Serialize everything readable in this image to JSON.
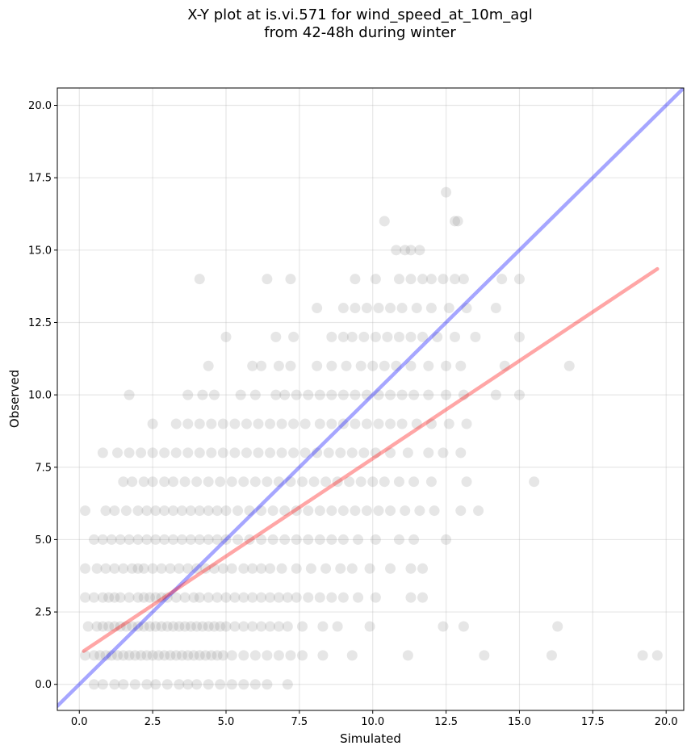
{
  "chart_data": {
    "type": "scatter",
    "title": "X-Y plot at is.vi.571 for wind_speed_at_10m_agl\nfrom 42-48h during winter",
    "xlabel": "Simulated",
    "ylabel": "Observed",
    "xlim": [
      -0.75,
      20.6
    ],
    "ylim": [
      -0.9,
      20.6
    ],
    "xticks": [
      0.0,
      2.5,
      5.0,
      7.5,
      10.0,
      12.5,
      15.0,
      17.5,
      20.0
    ],
    "xtick_labels": [
      "0.0",
      "2.5",
      "5.0",
      "7.5",
      "10.0",
      "12.5",
      "15.0",
      "17.5",
      "20.0"
    ],
    "yticks": [
      0.0,
      2.5,
      5.0,
      7.5,
      10.0,
      12.5,
      15.0,
      17.5,
      20.0
    ],
    "ytick_labels": [
      "0.0",
      "2.5",
      "5.0",
      "7.5",
      "10.0",
      "12.5",
      "15.0",
      "17.5",
      "20.0"
    ],
    "grid": true,
    "point_color": "#808080",
    "point_opacity": 0.2,
    "reference_lines": [
      {
        "kind": "identity",
        "x": [
          -0.75,
          20.6
        ],
        "y": [
          -0.75,
          20.6
        ],
        "color": "#0000ff",
        "opacity": 0.35
      },
      {
        "kind": "regression",
        "x": [
          0.15,
          19.7
        ],
        "y": [
          1.15,
          14.35
        ],
        "color": "#ff0000",
        "opacity": 0.35
      }
    ],
    "points": [
      [
        0.5,
        0
      ],
      [
        0.8,
        0
      ],
      [
        1.2,
        0
      ],
      [
        1.5,
        0
      ],
      [
        1.9,
        0
      ],
      [
        2.3,
        0
      ],
      [
        2.6,
        0
      ],
      [
        3.0,
        0
      ],
      [
        3.4,
        0
      ],
      [
        3.7,
        0
      ],
      [
        4.0,
        0
      ],
      [
        4.4,
        0
      ],
      [
        4.8,
        0
      ],
      [
        5.2,
        0
      ],
      [
        5.6,
        0
      ],
      [
        6.0,
        0
      ],
      [
        6.4,
        0
      ],
      [
        7.1,
        0
      ],
      [
        0.2,
        1
      ],
      [
        0.5,
        1
      ],
      [
        0.7,
        1
      ],
      [
        0.9,
        1
      ],
      [
        1.1,
        1
      ],
      [
        1.3,
        1
      ],
      [
        1.5,
        1
      ],
      [
        1.7,
        1
      ],
      [
        1.9,
        1
      ],
      [
        2.1,
        1
      ],
      [
        2.3,
        1
      ],
      [
        2.5,
        1
      ],
      [
        2.7,
        1
      ],
      [
        2.9,
        1
      ],
      [
        3.1,
        1
      ],
      [
        3.3,
        1
      ],
      [
        3.5,
        1
      ],
      [
        3.7,
        1
      ],
      [
        3.9,
        1
      ],
      [
        4.1,
        1
      ],
      [
        4.3,
        1
      ],
      [
        4.5,
        1
      ],
      [
        4.7,
        1
      ],
      [
        4.9,
        1
      ],
      [
        5.2,
        1
      ],
      [
        5.6,
        1
      ],
      [
        6.0,
        1
      ],
      [
        6.4,
        1
      ],
      [
        6.8,
        1
      ],
      [
        7.2,
        1
      ],
      [
        7.6,
        1
      ],
      [
        8.3,
        1
      ],
      [
        9.3,
        1
      ],
      [
        11.2,
        1
      ],
      [
        13.8,
        1
      ],
      [
        16.1,
        1
      ],
      [
        19.2,
        1
      ],
      [
        19.7,
        1
      ],
      [
        0.3,
        2
      ],
      [
        0.6,
        2
      ],
      [
        0.8,
        2
      ],
      [
        1.0,
        2
      ],
      [
        1.2,
        2
      ],
      [
        1.4,
        2
      ],
      [
        1.6,
        2
      ],
      [
        1.8,
        2
      ],
      [
        2.0,
        2
      ],
      [
        2.2,
        2
      ],
      [
        2.4,
        2
      ],
      [
        2.6,
        2
      ],
      [
        2.8,
        2
      ],
      [
        3.0,
        2
      ],
      [
        3.2,
        2
      ],
      [
        3.4,
        2
      ],
      [
        3.6,
        2
      ],
      [
        3.8,
        2
      ],
      [
        4.0,
        2
      ],
      [
        4.2,
        2
      ],
      [
        4.4,
        2
      ],
      [
        4.6,
        2
      ],
      [
        4.8,
        2
      ],
      [
        5.0,
        2
      ],
      [
        5.3,
        2
      ],
      [
        5.6,
        2
      ],
      [
        5.9,
        2
      ],
      [
        6.2,
        2
      ],
      [
        6.5,
        2
      ],
      [
        6.8,
        2
      ],
      [
        7.1,
        2
      ],
      [
        7.6,
        2
      ],
      [
        8.3,
        2
      ],
      [
        8.8,
        2
      ],
      [
        9.9,
        2
      ],
      [
        12.4,
        2
      ],
      [
        13.1,
        2
      ],
      [
        16.3,
        2
      ],
      [
        0.2,
        3
      ],
      [
        0.5,
        3
      ],
      [
        0.8,
        3
      ],
      [
        1.0,
        3
      ],
      [
        1.2,
        3
      ],
      [
        1.4,
        3
      ],
      [
        1.7,
        3
      ],
      [
        2.0,
        3
      ],
      [
        2.2,
        3
      ],
      [
        2.4,
        3
      ],
      [
        2.6,
        3
      ],
      [
        2.8,
        3
      ],
      [
        3.0,
        3
      ],
      [
        3.3,
        3
      ],
      [
        3.6,
        3
      ],
      [
        3.9,
        3
      ],
      [
        4.1,
        3
      ],
      [
        4.4,
        3
      ],
      [
        4.7,
        3
      ],
      [
        5.0,
        3
      ],
      [
        5.3,
        3
      ],
      [
        5.6,
        3
      ],
      [
        5.9,
        3
      ],
      [
        6.2,
        3
      ],
      [
        6.5,
        3
      ],
      [
        6.8,
        3
      ],
      [
        7.1,
        3
      ],
      [
        7.4,
        3
      ],
      [
        7.8,
        3
      ],
      [
        8.2,
        3
      ],
      [
        8.6,
        3
      ],
      [
        9.0,
        3
      ],
      [
        9.5,
        3
      ],
      [
        10.1,
        3
      ],
      [
        11.3,
        3
      ],
      [
        11.7,
        3
      ],
      [
        0.2,
        4
      ],
      [
        0.6,
        4
      ],
      [
        0.9,
        4
      ],
      [
        1.2,
        4
      ],
      [
        1.5,
        4
      ],
      [
        1.8,
        4
      ],
      [
        2.0,
        4
      ],
      [
        2.2,
        4
      ],
      [
        2.5,
        4
      ],
      [
        2.8,
        4
      ],
      [
        3.1,
        4
      ],
      [
        3.4,
        4
      ],
      [
        3.7,
        4
      ],
      [
        4.0,
        4
      ],
      [
        4.3,
        4
      ],
      [
        4.6,
        4
      ],
      [
        4.9,
        4
      ],
      [
        5.2,
        4
      ],
      [
        5.6,
        4
      ],
      [
        5.9,
        4
      ],
      [
        6.2,
        4
      ],
      [
        6.5,
        4
      ],
      [
        6.9,
        4
      ],
      [
        7.4,
        4
      ],
      [
        7.9,
        4
      ],
      [
        8.4,
        4
      ],
      [
        8.9,
        4
      ],
      [
        9.3,
        4
      ],
      [
        9.9,
        4
      ],
      [
        10.6,
        4
      ],
      [
        11.3,
        4
      ],
      [
        11.7,
        4
      ],
      [
        0.5,
        5
      ],
      [
        0.8,
        5
      ],
      [
        1.1,
        5
      ],
      [
        1.4,
        5
      ],
      [
        1.7,
        5
      ],
      [
        2.0,
        5
      ],
      [
        2.3,
        5
      ],
      [
        2.6,
        5
      ],
      [
        2.9,
        5
      ],
      [
        3.2,
        5
      ],
      [
        3.5,
        5
      ],
      [
        3.8,
        5
      ],
      [
        4.1,
        5
      ],
      [
        4.4,
        5
      ],
      [
        4.7,
        5
      ],
      [
        5.0,
        5
      ],
      [
        5.4,
        5
      ],
      [
        5.8,
        5
      ],
      [
        6.2,
        5
      ],
      [
        6.6,
        5
      ],
      [
        7.0,
        5
      ],
      [
        7.4,
        5
      ],
      [
        7.8,
        5
      ],
      [
        8.2,
        5
      ],
      [
        8.6,
        5
      ],
      [
        9.0,
        5
      ],
      [
        9.5,
        5
      ],
      [
        10.1,
        5
      ],
      [
        10.9,
        5
      ],
      [
        11.4,
        5
      ],
      [
        12.5,
        5
      ],
      [
        0.2,
        6
      ],
      [
        0.9,
        6
      ],
      [
        1.2,
        6
      ],
      [
        1.6,
        6
      ],
      [
        2.0,
        6
      ],
      [
        2.3,
        6
      ],
      [
        2.6,
        6
      ],
      [
        2.9,
        6
      ],
      [
        3.2,
        6
      ],
      [
        3.5,
        6
      ],
      [
        3.8,
        6
      ],
      [
        4.1,
        6
      ],
      [
        4.4,
        6
      ],
      [
        4.7,
        6
      ],
      [
        5.0,
        6
      ],
      [
        5.4,
        6
      ],
      [
        5.8,
        6
      ],
      [
        6.2,
        6
      ],
      [
        6.6,
        6
      ],
      [
        7.0,
        6
      ],
      [
        7.4,
        6
      ],
      [
        7.8,
        6
      ],
      [
        8.2,
        6
      ],
      [
        8.6,
        6
      ],
      [
        9.0,
        6
      ],
      [
        9.4,
        6
      ],
      [
        9.8,
        6
      ],
      [
        10.2,
        6
      ],
      [
        10.6,
        6
      ],
      [
        11.1,
        6
      ],
      [
        11.6,
        6
      ],
      [
        12.1,
        6
      ],
      [
        13.0,
        6
      ],
      [
        13.6,
        6
      ],
      [
        1.5,
        7
      ],
      [
        1.8,
        7
      ],
      [
        2.2,
        7
      ],
      [
        2.5,
        7
      ],
      [
        2.9,
        7
      ],
      [
        3.2,
        7
      ],
      [
        3.6,
        7
      ],
      [
        4.0,
        7
      ],
      [
        4.4,
        7
      ],
      [
        4.8,
        7
      ],
      [
        5.2,
        7
      ],
      [
        5.6,
        7
      ],
      [
        6.0,
        7
      ],
      [
        6.4,
        7
      ],
      [
        6.8,
        7
      ],
      [
        7.2,
        7
      ],
      [
        7.6,
        7
      ],
      [
        8.0,
        7
      ],
      [
        8.4,
        7
      ],
      [
        8.8,
        7
      ],
      [
        9.2,
        7
      ],
      [
        9.6,
        7
      ],
      [
        10.0,
        7
      ],
      [
        10.4,
        7
      ],
      [
        10.9,
        7
      ],
      [
        11.4,
        7
      ],
      [
        12.0,
        7
      ],
      [
        13.2,
        7
      ],
      [
        15.5,
        7
      ],
      [
        0.8,
        8
      ],
      [
        1.3,
        8
      ],
      [
        1.7,
        8
      ],
      [
        2.1,
        8
      ],
      [
        2.5,
        8
      ],
      [
        2.9,
        8
      ],
      [
        3.3,
        8
      ],
      [
        3.7,
        8
      ],
      [
        4.1,
        8
      ],
      [
        4.5,
        8
      ],
      [
        4.9,
        8
      ],
      [
        5.3,
        8
      ],
      [
        5.7,
        8
      ],
      [
        6.1,
        8
      ],
      [
        6.5,
        8
      ],
      [
        6.9,
        8
      ],
      [
        7.3,
        8
      ],
      [
        7.7,
        8
      ],
      [
        8.1,
        8
      ],
      [
        8.5,
        8
      ],
      [
        8.9,
        8
      ],
      [
        9.3,
        8
      ],
      [
        9.7,
        8
      ],
      [
        10.1,
        8
      ],
      [
        10.6,
        8
      ],
      [
        11.2,
        8
      ],
      [
        11.9,
        8
      ],
      [
        12.4,
        8
      ],
      [
        13.0,
        8
      ],
      [
        2.5,
        9
      ],
      [
        3.3,
        9
      ],
      [
        3.7,
        9
      ],
      [
        4.1,
        9
      ],
      [
        4.5,
        9
      ],
      [
        4.9,
        9
      ],
      [
        5.3,
        9
      ],
      [
        5.7,
        9
      ],
      [
        6.1,
        9
      ],
      [
        6.5,
        9
      ],
      [
        6.9,
        9
      ],
      [
        7.3,
        9
      ],
      [
        7.7,
        9
      ],
      [
        8.2,
        9
      ],
      [
        8.6,
        9
      ],
      [
        9.0,
        9
      ],
      [
        9.4,
        9
      ],
      [
        9.8,
        9
      ],
      [
        10.2,
        9
      ],
      [
        10.6,
        9
      ],
      [
        11.0,
        9
      ],
      [
        11.5,
        9
      ],
      [
        12.0,
        9
      ],
      [
        12.6,
        9
      ],
      [
        13.2,
        9
      ],
      [
        1.7,
        10
      ],
      [
        3.7,
        10
      ],
      [
        4.2,
        10
      ],
      [
        4.6,
        10
      ],
      [
        5.5,
        10
      ],
      [
        6.0,
        10
      ],
      [
        6.7,
        10
      ],
      [
        7.0,
        10
      ],
      [
        7.4,
        10
      ],
      [
        7.8,
        10
      ],
      [
        8.2,
        10
      ],
      [
        8.6,
        10
      ],
      [
        9.0,
        10
      ],
      [
        9.4,
        10
      ],
      [
        9.8,
        10
      ],
      [
        10.2,
        10
      ],
      [
        10.6,
        10
      ],
      [
        11.0,
        10
      ],
      [
        11.4,
        10
      ],
      [
        11.9,
        10
      ],
      [
        12.5,
        10
      ],
      [
        13.1,
        10
      ],
      [
        14.2,
        10
      ],
      [
        15.0,
        10
      ],
      [
        4.4,
        11
      ],
      [
        5.9,
        11
      ],
      [
        6.2,
        11
      ],
      [
        6.8,
        11
      ],
      [
        7.2,
        11
      ],
      [
        8.1,
        11
      ],
      [
        8.6,
        11
      ],
      [
        9.1,
        11
      ],
      [
        9.6,
        11
      ],
      [
        10.0,
        11
      ],
      [
        10.4,
        11
      ],
      [
        10.8,
        11
      ],
      [
        11.3,
        11
      ],
      [
        11.9,
        11
      ],
      [
        12.5,
        11
      ],
      [
        13.0,
        11
      ],
      [
        14.5,
        11
      ],
      [
        16.7,
        11
      ],
      [
        5.0,
        12
      ],
      [
        6.7,
        12
      ],
      [
        7.3,
        12
      ],
      [
        8.6,
        12
      ],
      [
        9.0,
        12
      ],
      [
        9.3,
        12
      ],
      [
        9.7,
        12
      ],
      [
        10.1,
        12
      ],
      [
        10.5,
        12
      ],
      [
        10.9,
        12
      ],
      [
        11.3,
        12
      ],
      [
        11.7,
        12
      ],
      [
        12.2,
        12
      ],
      [
        12.8,
        12
      ],
      [
        13.5,
        12
      ],
      [
        15.0,
        12
      ],
      [
        8.1,
        13
      ],
      [
        9.0,
        13
      ],
      [
        9.4,
        13
      ],
      [
        9.8,
        13
      ],
      [
        10.2,
        13
      ],
      [
        10.6,
        13
      ],
      [
        11.0,
        13
      ],
      [
        11.5,
        13
      ],
      [
        12.0,
        13
      ],
      [
        12.6,
        13
      ],
      [
        13.2,
        13
      ],
      [
        14.2,
        13
      ],
      [
        4.1,
        14
      ],
      [
        6.4,
        14
      ],
      [
        7.2,
        14
      ],
      [
        9.4,
        14
      ],
      [
        10.1,
        14
      ],
      [
        10.9,
        14
      ],
      [
        11.3,
        14
      ],
      [
        11.7,
        14
      ],
      [
        12.0,
        14
      ],
      [
        12.4,
        14
      ],
      [
        12.8,
        14
      ],
      [
        13.1,
        14
      ],
      [
        14.4,
        14
      ],
      [
        15.0,
        14
      ],
      [
        10.8,
        15
      ],
      [
        11.1,
        15
      ],
      [
        11.3,
        15
      ],
      [
        11.6,
        15
      ],
      [
        10.4,
        16
      ],
      [
        12.8,
        16
      ],
      [
        12.9,
        16
      ],
      [
        12.5,
        17
      ]
    ]
  }
}
